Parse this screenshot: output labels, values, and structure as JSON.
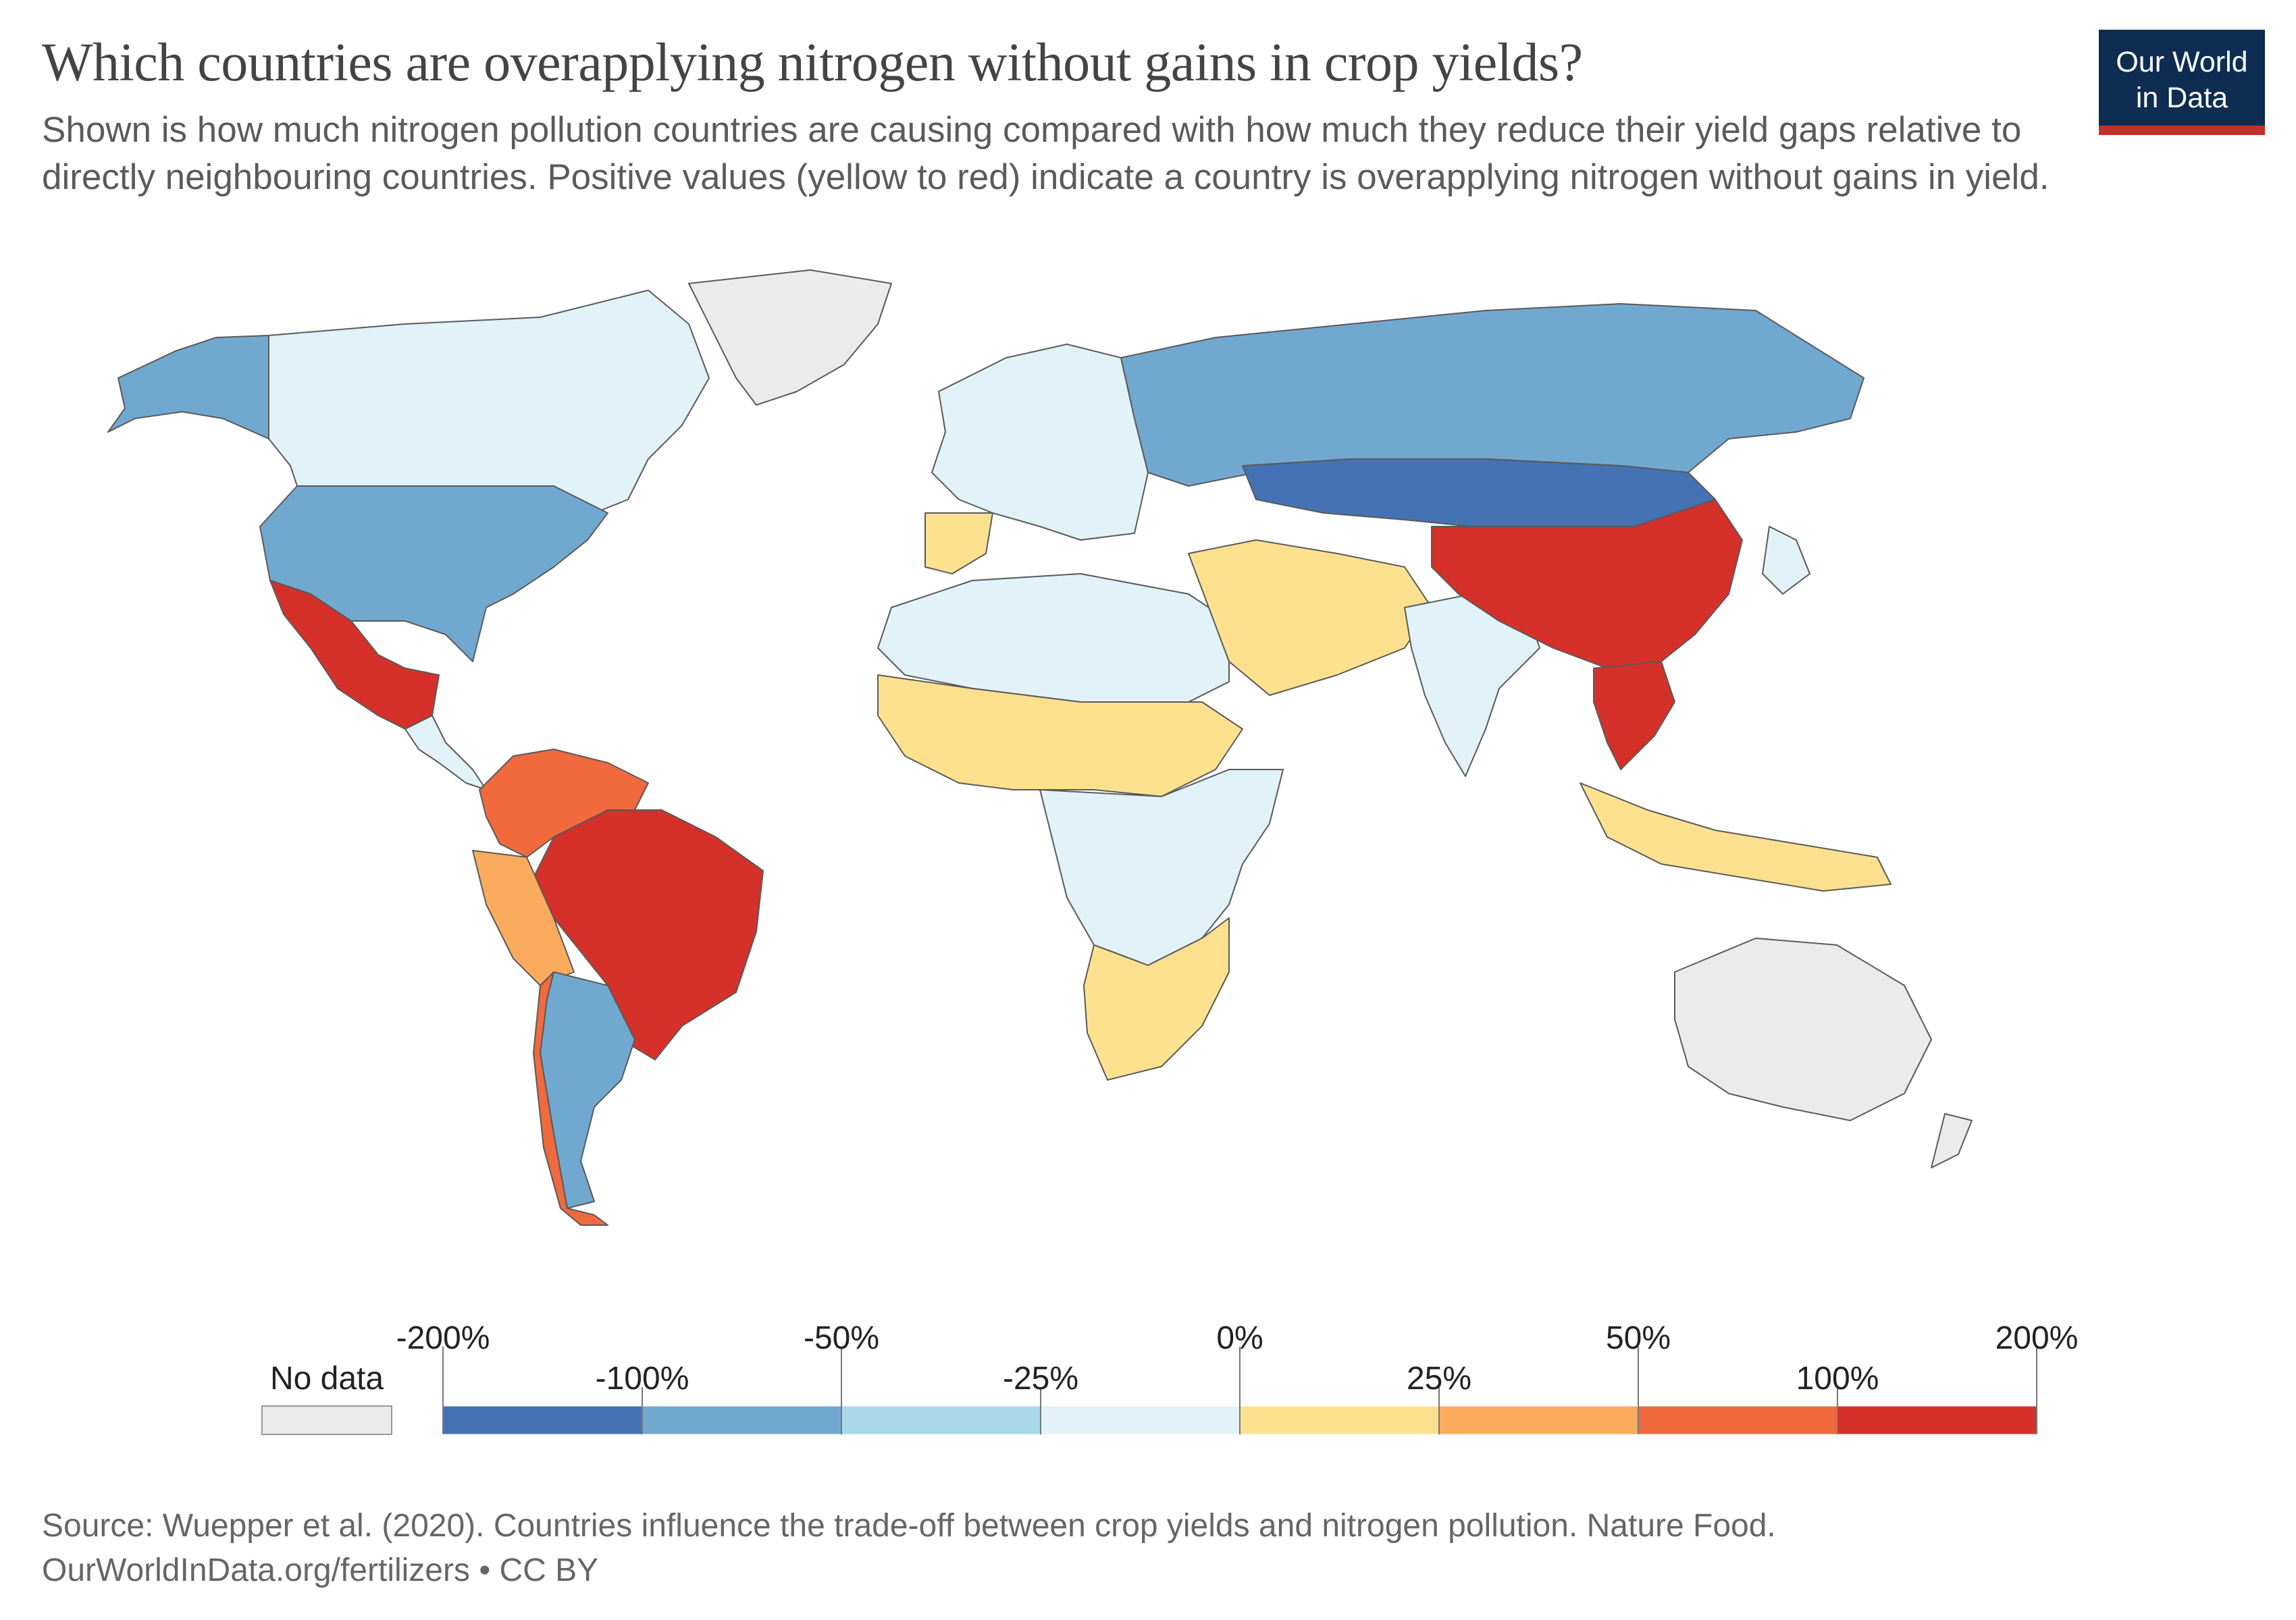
{
  "header": {
    "title": "Which countries are overapplying nitrogen without gains in crop yields?",
    "subtitle": "Shown is how much nitrogen pollution countries are causing compared with how much they reduce their yield gaps relative to directly neighbouring countries. Positive values (yellow to red) indicate a country is overapplying nitrogen without gains in yield.",
    "logo_line1": "Our World",
    "logo_line2": "in Data"
  },
  "colors": {
    "logo_bg": "#0f2d52",
    "logo_accent": "#c0302c",
    "no_data": "#ebebeb",
    "bins": [
      "#4572b4",
      "#71a8d0",
      "#aad8e8",
      "#e1f2f8",
      "#fde18f",
      "#fbab5d",
      "#f06a3d",
      "#d5302a"
    ]
  },
  "legend": {
    "no_data_label": "No data",
    "upper_ticks": [
      "-200%",
      "-50%",
      "0%",
      "50%",
      "200%"
    ],
    "lower_ticks": [
      "-100%",
      "-25%",
      "25%",
      "100%"
    ]
  },
  "map_regions": [
    {
      "name": "alaska",
      "bin": 1
    },
    {
      "name": "canada",
      "bin": 3
    },
    {
      "name": "greenland",
      "bin": -1
    },
    {
      "name": "usa",
      "bin": 1
    },
    {
      "name": "mexico",
      "bin": 7
    },
    {
      "name": "central-america",
      "bin": 3
    },
    {
      "name": "colombia-venezuela",
      "bin": 6
    },
    {
      "name": "brazil",
      "bin": 7
    },
    {
      "name": "peru",
      "bin": 5
    },
    {
      "name": "argentina",
      "bin": 1
    },
    {
      "name": "chile",
      "bin": 6
    },
    {
      "name": "western-europe",
      "bin": 3
    },
    {
      "name": "iberia",
      "bin": 4
    },
    {
      "name": "north-africa",
      "bin": 3
    },
    {
      "name": "west-africa-sahel",
      "bin": 4
    },
    {
      "name": "central-africa",
      "bin": 3
    },
    {
      "name": "southern-africa",
      "bin": 4
    },
    {
      "name": "russia",
      "bin": 1
    },
    {
      "name": "kazakhstan-mongolia",
      "bin": 0
    },
    {
      "name": "middle-east",
      "bin": 4
    },
    {
      "name": "india",
      "bin": 3
    },
    {
      "name": "china",
      "bin": 7
    },
    {
      "name": "southeast-asia",
      "bin": 7
    },
    {
      "name": "indonesia",
      "bin": 4
    },
    {
      "name": "australia",
      "bin": -1
    },
    {
      "name": "new-zealand",
      "bin": -1
    },
    {
      "name": "japan",
      "bin": 3
    }
  ],
  "footer": {
    "source": "Source: Wuepper et al. (2020). Countries influence the trade-off between crop yields and nitrogen pollution. Nature Food.",
    "url": "OurWorldInData.org/fertilizers • CC BY"
  }
}
